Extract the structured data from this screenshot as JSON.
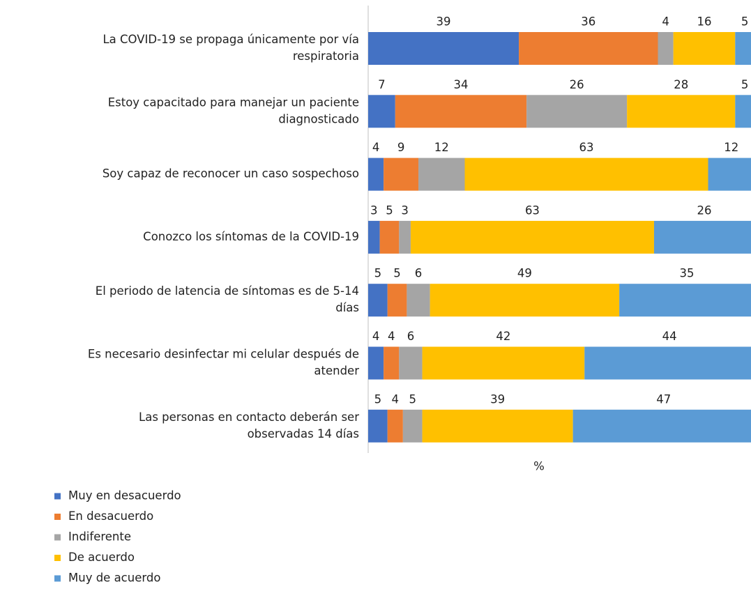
{
  "chart_data": {
    "type": "stacked-bar-horizontal",
    "categories": [
      [
        "La COVID-19 se propaga únicamente por vía",
        "respiratoria"
      ],
      [
        "Estoy capacitado para manejar un paciente",
        "diagnosticado"
      ],
      [
        "Soy capaz de reconocer un caso sospechoso"
      ],
      [
        "Conozco los síntomas de la COVID-19"
      ],
      [
        "El periodo de latencia de síntomas es de 5-14",
        "días"
      ],
      [
        "Es necesario desinfectar mi celular después de",
        "atender"
      ],
      [
        "Las personas en contacto deberán ser",
        "observadas 14 días"
      ]
    ],
    "series": [
      {
        "name": "Muy en desacuerdo",
        "color": "#4472c4",
        "values": [
          39,
          7,
          4,
          3,
          5,
          4,
          5
        ]
      },
      {
        "name": "En desacuerdo",
        "color": "#ed7d31",
        "values": [
          36,
          34,
          9,
          5,
          5,
          4,
          4
        ]
      },
      {
        "name": "Indiferente",
        "color": "#a5a5a5",
        "values": [
          4,
          26,
          12,
          3,
          6,
          6,
          5
        ]
      },
      {
        "name": "De acuerdo",
        "color": "#ffc000",
        "values": [
          16,
          28,
          63,
          63,
          49,
          42,
          39
        ]
      },
      {
        "name": "Muy de acuerdo",
        "color": "#5b9bd5",
        "values": [
          5,
          5,
          12,
          26,
          35,
          44,
          47
        ]
      }
    ],
    "xlabel": "%",
    "xlim": [
      0,
      100
    ],
    "legend": "bottom-left"
  }
}
